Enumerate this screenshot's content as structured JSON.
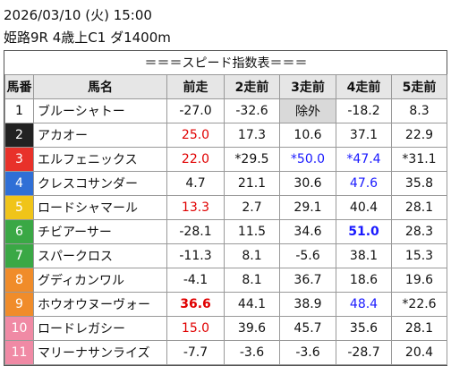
{
  "header": {
    "datetime": "2026/03/10 (火) 15:00",
    "race": "姫路9R 4歳上C1 ダ1400m"
  },
  "table": {
    "title": "＝＝＝スピード指数表＝＝＝",
    "columns": [
      "馬番",
      "馬名",
      "前走",
      "2走前",
      "3走前",
      "4走前",
      "5走前"
    ],
    "rows": [
      {
        "no": "1",
        "frame_color": "#ffffff",
        "no_color": "#000000",
        "name": "ブルーシャトー",
        "cells": [
          {
            "text": "-27.0"
          },
          {
            "text": "-32.6"
          },
          {
            "text": "除外",
            "bg": "#d9d9d9"
          },
          {
            "text": "-18.2"
          },
          {
            "text": "8.3"
          }
        ]
      },
      {
        "no": "2",
        "frame_color": "#222222",
        "no_color": "#ffffff",
        "name": "アカオー",
        "cells": [
          {
            "text": "25.0",
            "color": "#e00000"
          },
          {
            "text": "17.3"
          },
          {
            "text": "10.6"
          },
          {
            "text": "37.1"
          },
          {
            "text": "22.9"
          }
        ]
      },
      {
        "no": "3",
        "frame_color": "#e8312a",
        "no_color": "#ffffff",
        "name": "エルフェニックス",
        "cells": [
          {
            "text": "22.0",
            "color": "#e00000"
          },
          {
            "text": "*29.5"
          },
          {
            "text": "*50.0",
            "color": "#1a1aff"
          },
          {
            "text": "*47.4",
            "color": "#1a1aff"
          },
          {
            "text": "*31.1"
          }
        ]
      },
      {
        "no": "4",
        "frame_color": "#2f6fd6",
        "no_color": "#ffffff",
        "name": "クレスコサンダー",
        "cells": [
          {
            "text": "4.7"
          },
          {
            "text": "21.1"
          },
          {
            "text": "30.6"
          },
          {
            "text": "47.6",
            "color": "#1a1aff"
          },
          {
            "text": "35.8"
          }
        ]
      },
      {
        "no": "5",
        "frame_color": "#f0c419",
        "no_color": "#ffffff",
        "name": "ロードシャマール",
        "cells": [
          {
            "text": "13.3",
            "color": "#e00000"
          },
          {
            "text": "2.7"
          },
          {
            "text": "29.1"
          },
          {
            "text": "40.4"
          },
          {
            "text": "28.1"
          }
        ]
      },
      {
        "no": "6",
        "frame_color": "#3aa845",
        "no_color": "#ffffff",
        "name": "チビアーサー",
        "cells": [
          {
            "text": "-28.1"
          },
          {
            "text": "11.5"
          },
          {
            "text": "34.6"
          },
          {
            "text": "51.0",
            "color": "#1a1aff",
            "bold": true
          },
          {
            "text": "28.3"
          }
        ]
      },
      {
        "no": "7",
        "frame_color": "#3aa845",
        "no_color": "#ffffff",
        "name": "スパークロス",
        "cells": [
          {
            "text": "-11.3"
          },
          {
            "text": "8.1"
          },
          {
            "text": "-5.6"
          },
          {
            "text": "38.1"
          },
          {
            "text": "15.3"
          }
        ]
      },
      {
        "no": "8",
        "frame_color": "#f08c2a",
        "no_color": "#ffffff",
        "name": "グディカンワル",
        "cells": [
          {
            "text": "-4.1"
          },
          {
            "text": "8.1"
          },
          {
            "text": "36.7"
          },
          {
            "text": "18.6"
          },
          {
            "text": "19.6"
          }
        ]
      },
      {
        "no": "9",
        "frame_color": "#f08c2a",
        "no_color": "#ffffff",
        "name": "ホウオウヌーヴォー",
        "cells": [
          {
            "text": "36.6",
            "color": "#e00000",
            "bold": true
          },
          {
            "text": "44.1"
          },
          {
            "text": "38.9"
          },
          {
            "text": "48.4",
            "color": "#1a1aff"
          },
          {
            "text": "*22.6"
          }
        ]
      },
      {
        "no": "10",
        "frame_color": "#f08aa5",
        "no_color": "#ffffff",
        "name": "ロードレガシー",
        "cells": [
          {
            "text": "15.0",
            "color": "#e00000"
          },
          {
            "text": "39.6"
          },
          {
            "text": "45.7"
          },
          {
            "text": "35.6"
          },
          {
            "text": "28.1"
          }
        ]
      },
      {
        "no": "11",
        "frame_color": "#f08aa5",
        "no_color": "#ffffff",
        "name": "マリーナサンライズ",
        "cells": [
          {
            "text": "-7.7"
          },
          {
            "text": "-3.6"
          },
          {
            "text": "-3.6"
          },
          {
            "text": "-28.7"
          },
          {
            "text": "20.4"
          }
        ]
      }
    ]
  }
}
